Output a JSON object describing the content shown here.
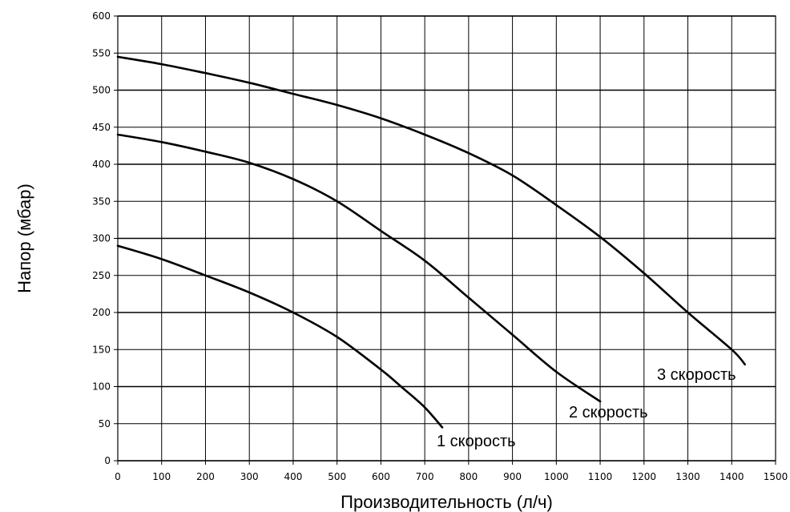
{
  "chart_data": {
    "type": "line",
    "title": "",
    "xlabel": "Производительность (л/ч)",
    "ylabel": "Напор (мбар)",
    "xlim": [
      0,
      1500
    ],
    "ylim": [
      0,
      600
    ],
    "x_ticks": [
      0,
      100,
      200,
      300,
      400,
      500,
      600,
      700,
      800,
      900,
      1000,
      1100,
      1200,
      1300,
      1400,
      1500
    ],
    "y_ticks": [
      0,
      50,
      100,
      150,
      200,
      250,
      300,
      350,
      400,
      450,
      500,
      550,
      600
    ],
    "grid": true,
    "legend": "none",
    "series": [
      {
        "name": "1 скорость",
        "x": [
          0,
          100,
          200,
          300,
          400,
          500,
          600,
          650,
          700,
          740
        ],
        "y": [
          290,
          272,
          250,
          227,
          200,
          167,
          123,
          98,
          72,
          45
        ]
      },
      {
        "name": "2 скорость",
        "x": [
          0,
          100,
          200,
          300,
          400,
          500,
          600,
          700,
          800,
          900,
          1000,
          1100
        ],
        "y": [
          440,
          430,
          417,
          402,
          380,
          350,
          310,
          270,
          220,
          170,
          120,
          80
        ]
      },
      {
        "name": "3 скорость",
        "x": [
          0,
          100,
          200,
          300,
          400,
          500,
          600,
          700,
          800,
          900,
          1000,
          1100,
          1200,
          1300,
          1400,
          1430
        ],
        "y": [
          545,
          535,
          523,
          510,
          495,
          480,
          462,
          440,
          415,
          385,
          345,
          302,
          253,
          200,
          150,
          130
        ]
      }
    ]
  }
}
